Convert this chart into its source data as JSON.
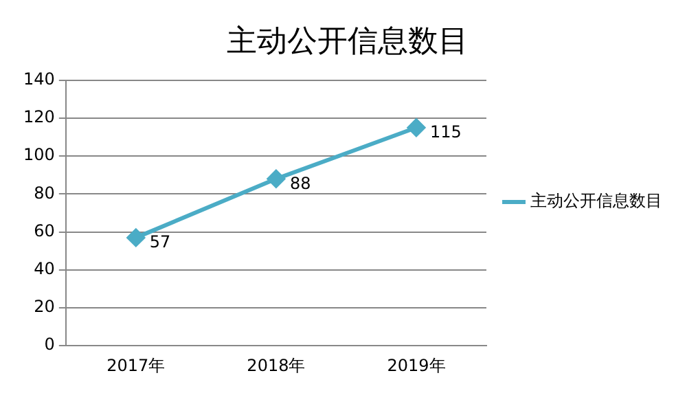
{
  "chart_data": {
    "type": "line",
    "title": "主动公开信息数目",
    "categories": [
      "2017年",
      "2018年",
      "2019年"
    ],
    "series": [
      {
        "name": "主动公开信息数目",
        "color": "#4bacc6",
        "values": [
          57,
          88,
          115
        ]
      }
    ],
    "ylim": [
      0,
      140
    ],
    "yticks": [
      0,
      20,
      40,
      60,
      80,
      100,
      120,
      140
    ],
    "grid": "y",
    "legend": "right",
    "marker": "diamond",
    "data_labels": true
  }
}
